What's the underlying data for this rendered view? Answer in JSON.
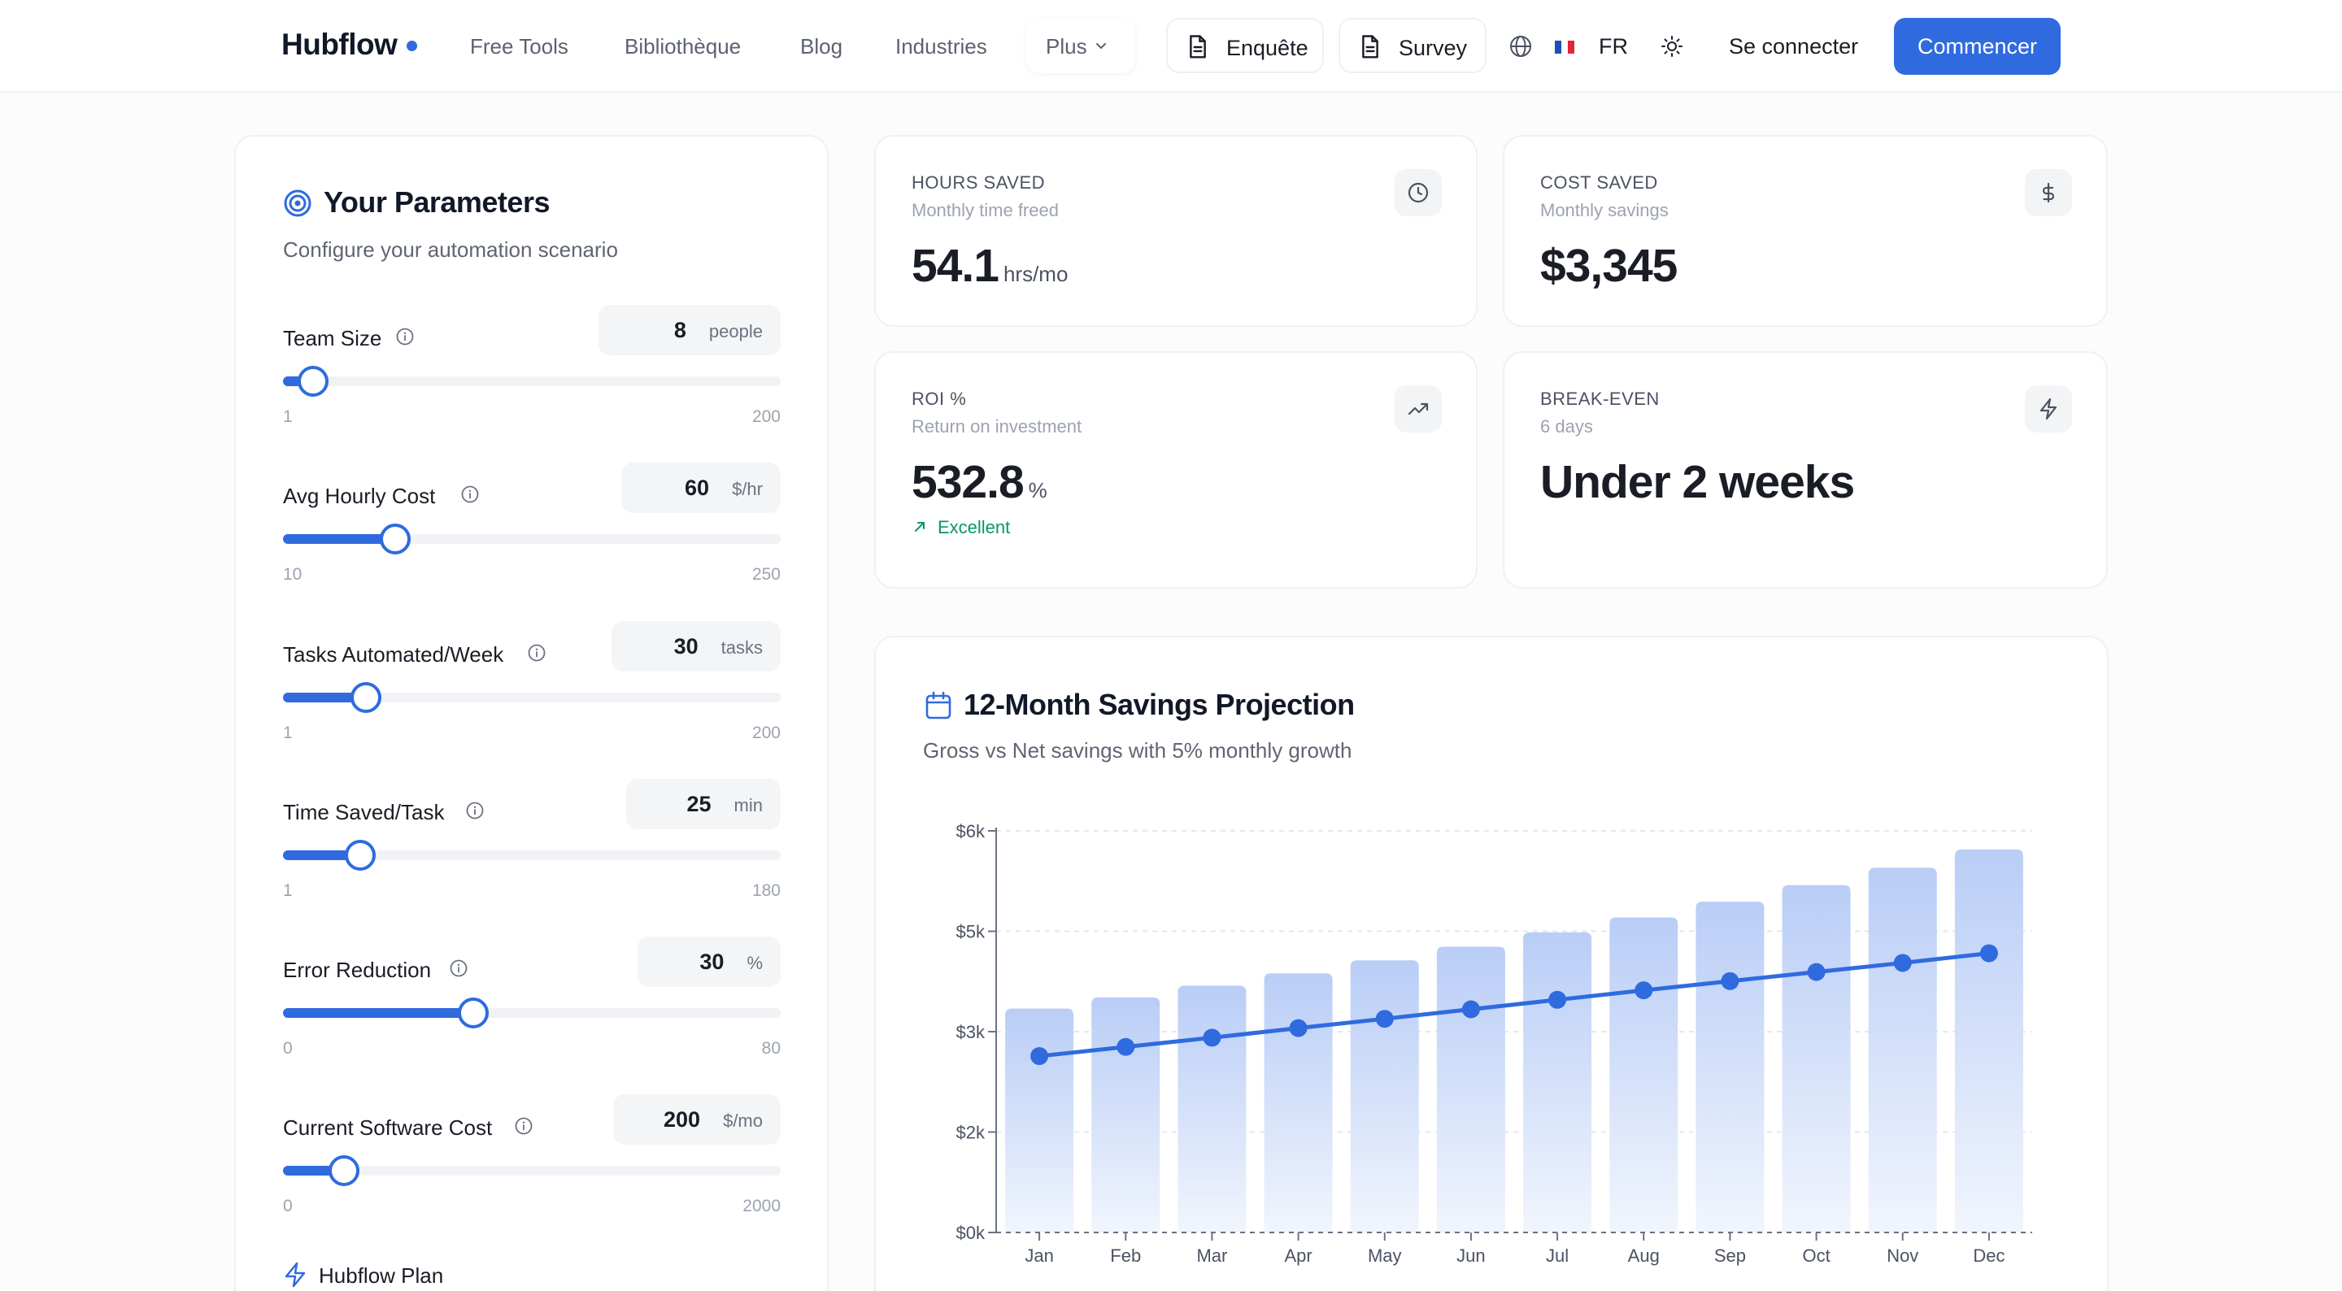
{
  "nav": {
    "logo": "Hubflow",
    "links": [
      "Free Tools",
      "Bibliothèque",
      "Blog",
      "Industries"
    ],
    "plus": "Plus",
    "enquete": "Enquête",
    "survey": "Survey",
    "lang": "FR",
    "login": "Se connecter",
    "cta": "Commencer",
    "accent": "#2f6bdf",
    "icons": [
      "document-icon",
      "globe-icon",
      "french-flag-icon",
      "sun-icon",
      "chevron-down-icon"
    ]
  },
  "params": {
    "title": "Your Parameters",
    "subtitle": "Configure your automation scenario",
    "items": [
      {
        "label": "Team Size",
        "value": "8",
        "unit": "people",
        "min": "1",
        "max": "200",
        "fraction": 0.06
      },
      {
        "label": "Avg Hourly Cost",
        "value": "60",
        "unit": "$/hr",
        "min": "10",
        "max": "250",
        "fraction": 0.225
      },
      {
        "label": "Tasks Automated/Week",
        "value": "30",
        "unit": "tasks",
        "min": "1",
        "max": "200",
        "fraction": 0.167
      },
      {
        "label": "Time Saved/Task",
        "value": "25",
        "unit": "min",
        "min": "1",
        "max": "180",
        "fraction": 0.155
      },
      {
        "label": "Error Reduction",
        "value": "30",
        "unit": "%",
        "min": "0",
        "max": "80",
        "fraction": 0.382
      },
      {
        "label": "Current Software Cost",
        "value": "200",
        "unit": "$/mo",
        "min": "0",
        "max": "2000",
        "fraction": 0.122
      }
    ],
    "plan_label": "Hubflow Plan"
  },
  "stats": {
    "hours": {
      "title": "HOURS SAVED",
      "subtitle": "Monthly time freed",
      "value": "54.1",
      "unit": "hrs/mo"
    },
    "cost": {
      "title": "COST SAVED",
      "subtitle": "Monthly savings",
      "value": "$3,345"
    },
    "roi": {
      "title": "ROI %",
      "subtitle": "Return on investment",
      "value": "532.8",
      "unit": "%",
      "badge": "Excellent"
    },
    "breakeven": {
      "title": "BREAK-EVEN",
      "subtitle": "6 days",
      "value": "Under 2 weeks"
    }
  },
  "chart_data": {
    "type": "bar",
    "title": "12-Month Savings Projection",
    "subtitle": "Gross vs Net savings with 5% monthly growth",
    "categories": [
      "Jan",
      "Feb",
      "Mar",
      "Apr",
      "May",
      "Jun",
      "Jul",
      "Aug",
      "Sep",
      "Oct",
      "Nov",
      "Dec"
    ],
    "y_ticks": [
      "$0k",
      "$2k",
      "$3k",
      "$5k",
      "$6k"
    ],
    "y_tick_values": [
      0,
      1500,
      3000,
      4500,
      6000
    ],
    "ylim": [
      0,
      6000
    ],
    "grid": true,
    "series": [
      {
        "values": [
          3345,
          3512,
          3688,
          3872,
          4066,
          4269,
          4483,
          4707,
          4942,
          5189,
          5449,
          5721
        ],
        "color": "#b9cdf6"
      },
      {
        "values": [
          2635,
          2772,
          2910,
          3053,
          3192,
          3334,
          3476,
          3618,
          3755,
          3891,
          4027,
          4171
        ],
        "color": "#2f6bdf"
      }
    ]
  }
}
